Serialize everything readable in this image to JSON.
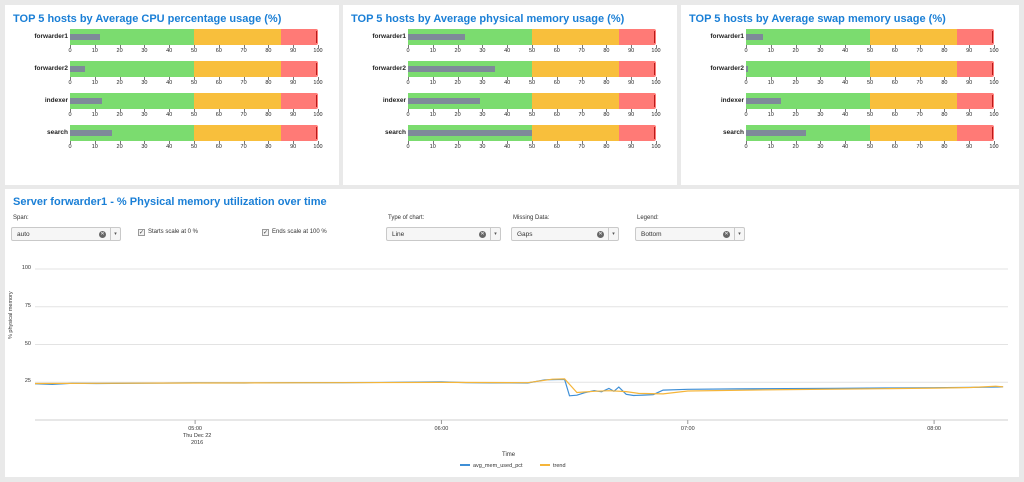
{
  "colors": {
    "title": "#1a7fd6",
    "green": "#7bdc6f",
    "yellow": "#f8bf3c",
    "red": "#ff7a76",
    "measure": "#7e8a99",
    "series_main": "#3f8fd6",
    "series_trend": "#f5b53a"
  },
  "bullet_panels": [
    {
      "title": "TOP 5 hosts by Average CPU percentage usage (%)",
      "ticks": [
        "0",
        "10",
        "20",
        "30",
        "40",
        "50",
        "60",
        "70",
        "80",
        "90",
        "100"
      ],
      "rows": [
        {
          "host": "forwarder1",
          "value": 12,
          "target": 99
        },
        {
          "host": "forwarder2",
          "value": 6,
          "target": 99
        },
        {
          "host": "indexer",
          "value": 13,
          "target": 99
        },
        {
          "host": "search",
          "value": 17,
          "target": 99
        }
      ]
    },
    {
      "title": "TOP 5 hosts by Average physical memory usage (%)",
      "ticks": [
        "0",
        "10",
        "20",
        "30",
        "40",
        "50",
        "60",
        "70",
        "80",
        "90",
        "100"
      ],
      "rows": [
        {
          "host": "forwarder1",
          "value": 23,
          "target": 99
        },
        {
          "host": "forwarder2",
          "value": 35,
          "target": 99
        },
        {
          "host": "indexer",
          "value": 29,
          "target": 99
        },
        {
          "host": "search",
          "value": 50,
          "target": 99
        }
      ]
    },
    {
      "title": "TOP 5 hosts by Average swap memory usage (%)",
      "ticks": [
        "0",
        "10",
        "20",
        "30",
        "40",
        "50",
        "60",
        "70",
        "80",
        "90",
        "100"
      ],
      "rows": [
        {
          "host": "forwarder1",
          "value": 7,
          "target": 99
        },
        {
          "host": "forwarder2",
          "value": 1,
          "target": 99
        },
        {
          "host": "indexer",
          "value": 14,
          "target": 99
        },
        {
          "host": "search",
          "value": 24,
          "target": 99
        }
      ]
    }
  ],
  "bands": {
    "green_to": 50,
    "yellow_to": 85,
    "red_to": 100
  },
  "main_panel": {
    "title": "Server forwarder1 - % Physical memory utilization over time",
    "span": {
      "label": "Span:",
      "value": "auto"
    },
    "starts_scale": {
      "label": "Starts scale at 0 %",
      "checked": true,
      "mark": "✓"
    },
    "ends_scale": {
      "label": "Ends scale at 100 %",
      "checked": true,
      "mark": "✓"
    },
    "chart_type": {
      "label": "Type of chart:",
      "value": "Line"
    },
    "missing_data": {
      "label": "Missing Data:",
      "value": "Gaps"
    },
    "legend_ctl": {
      "label": "Legend:",
      "value": "Bottom"
    },
    "clear_glyph": "✕",
    "caret_glyph": "▾"
  },
  "chart_data": {
    "type": "line",
    "title": "",
    "xlabel": "Time",
    "ylabel": "% physical memory",
    "ylim": [
      0,
      100
    ],
    "y_ticks": [
      "100",
      "75",
      "50",
      "25"
    ],
    "x_ticks": [
      {
        "label": "05:00",
        "sub1": "Thu Dec 22",
        "sub2": "2016",
        "x": 5.0
      },
      {
        "label": "06:00",
        "x": 6.0
      },
      {
        "label": "07:00",
        "x": 7.0
      },
      {
        "label": "08:00",
        "x": 8.0
      }
    ],
    "x_range": [
      4.35,
      8.3
    ],
    "grid": true,
    "legend": "bottom",
    "series": [
      {
        "name": "avg_mem_used_pct",
        "points": [
          [
            4.35,
            24.0
          ],
          [
            4.42,
            23.6
          ],
          [
            4.5,
            24.3
          ],
          [
            4.6,
            24.2
          ],
          [
            4.8,
            24.4
          ],
          [
            5.0,
            24.6
          ],
          [
            5.2,
            24.5
          ],
          [
            5.4,
            24.7
          ],
          [
            5.6,
            24.8
          ],
          [
            5.8,
            24.9
          ],
          [
            6.0,
            25.2
          ],
          [
            6.1,
            24.8
          ],
          [
            6.2,
            24.6
          ],
          [
            6.35,
            24.5
          ],
          [
            6.42,
            26.6
          ],
          [
            6.5,
            26.9
          ],
          [
            6.52,
            16.0
          ],
          [
            6.55,
            16.4
          ],
          [
            6.58,
            18.0
          ],
          [
            6.62,
            19.5
          ],
          [
            6.65,
            18.7
          ],
          [
            6.68,
            20.9
          ],
          [
            6.7,
            19.0
          ],
          [
            6.72,
            21.8
          ],
          [
            6.75,
            17.0
          ],
          [
            6.78,
            16.2
          ],
          [
            6.82,
            16.5
          ],
          [
            6.86,
            16.8
          ],
          [
            6.9,
            19.8
          ],
          [
            7.0,
            20.3
          ],
          [
            7.2,
            20.6
          ],
          [
            7.4,
            20.8
          ],
          [
            7.6,
            20.9
          ],
          [
            7.8,
            21.2
          ],
          [
            8.0,
            21.4
          ],
          [
            8.15,
            21.6
          ],
          [
            8.28,
            21.9
          ]
        ]
      },
      {
        "name": "trend",
        "points": [
          [
            4.35,
            24.2
          ],
          [
            4.6,
            24.3
          ],
          [
            5.0,
            24.5
          ],
          [
            5.5,
            24.7
          ],
          [
            6.0,
            24.9
          ],
          [
            6.35,
            24.7
          ],
          [
            6.45,
            27.0
          ],
          [
            6.5,
            27.2
          ],
          [
            6.55,
            18.2
          ],
          [
            6.62,
            19.0
          ],
          [
            6.68,
            19.4
          ],
          [
            6.75,
            18.8
          ],
          [
            6.8,
            17.6
          ],
          [
            6.9,
            17.3
          ],
          [
            7.0,
            19.2
          ],
          [
            7.4,
            20.1
          ],
          [
            7.8,
            20.7
          ],
          [
            8.0,
            21.1
          ],
          [
            8.15,
            21.5
          ],
          [
            8.25,
            22.4
          ],
          [
            8.28,
            21.9
          ]
        ]
      }
    ]
  }
}
